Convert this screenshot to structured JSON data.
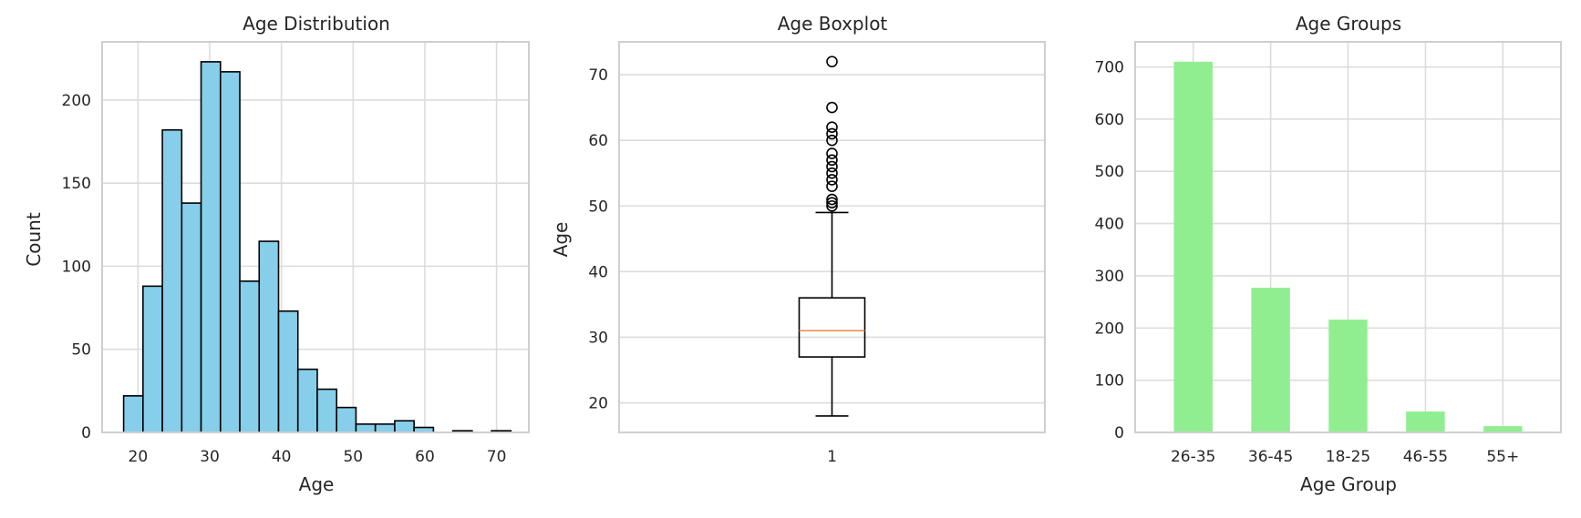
{
  "colors": {
    "hist_fill": "#87ceeb",
    "bar_fill": "#90ee90",
    "edge": "#000000",
    "median": "#f08a4b",
    "grid": "#dcdcdc",
    "frame": "#cfcfcf"
  },
  "chart_data": [
    {
      "type": "histogram",
      "title": "Age Distribution",
      "xlabel": "Age",
      "ylabel": "Count",
      "xlim": [
        15,
        74.5
      ],
      "ylim": [
        0,
        235
      ],
      "xticks": [
        20,
        30,
        40,
        50,
        60,
        70
      ],
      "yticks": [
        0,
        50,
        100,
        150,
        200
      ],
      "bin_edges": [
        18,
        20.7,
        23.4,
        26.1,
        28.8,
        31.5,
        34.2,
        36.9,
        39.6,
        42.3,
        45,
        47.7,
        50.4,
        53.1,
        55.8,
        58.5,
        61.2,
        63.9,
        66.6,
        69.3,
        72
      ],
      "values": [
        22,
        88,
        182,
        138,
        223,
        217,
        91,
        115,
        73,
        38,
        26,
        15,
        5,
        5,
        7,
        3,
        0,
        1,
        0,
        1
      ],
      "grid": true
    },
    {
      "type": "boxplot",
      "title": "Age Boxplot",
      "xlabel": "",
      "ylabel": "Age",
      "ylim": [
        15.5,
        75
      ],
      "yticks": [
        20,
        30,
        40,
        50,
        60,
        70
      ],
      "xticklabels": [
        "1"
      ],
      "box": {
        "whisker_low": 18,
        "q1": 27,
        "median": 31,
        "q3": 36,
        "whisker_high": 49
      },
      "outliers": [
        50,
        50.5,
        51,
        53,
        54,
        55,
        56,
        57,
        58,
        60,
        61,
        62,
        65,
        72
      ],
      "grid": true
    },
    {
      "type": "bar",
      "title": "Age Groups",
      "xlabel": "Age Group",
      "ylabel": "",
      "categories": [
        "26-35",
        "36-45",
        "18-25",
        "46-55",
        "55+"
      ],
      "values": [
        710,
        277,
        216,
        40,
        12
      ],
      "ylim": [
        0,
        748
      ],
      "yticks": [
        0,
        100,
        200,
        300,
        400,
        500,
        600,
        700
      ],
      "grid": true
    }
  ]
}
